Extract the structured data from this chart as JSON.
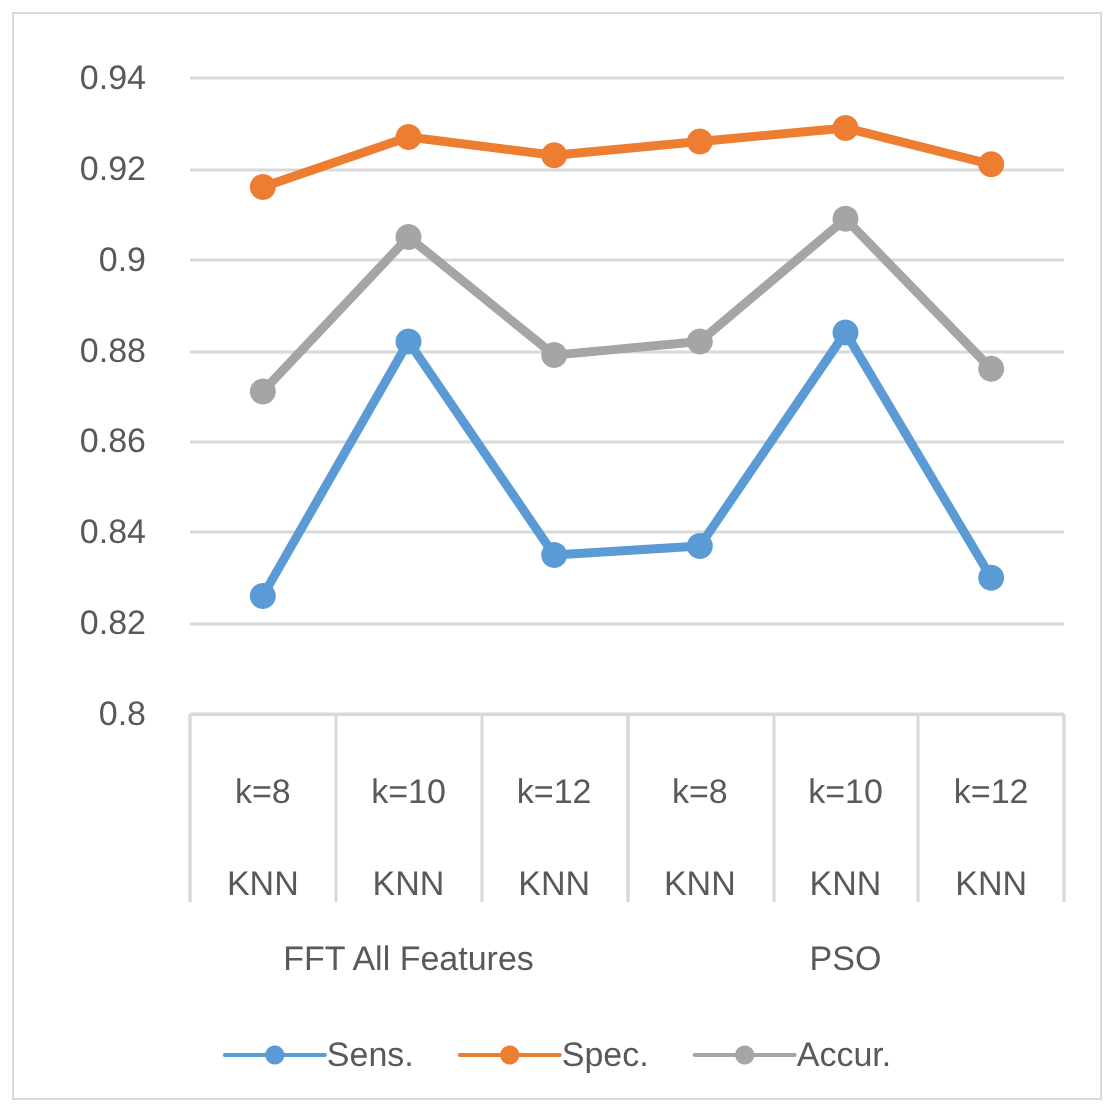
{
  "chart_data": {
    "type": "line",
    "categories": [
      "k=8\nKNN",
      "k=10\nKNN",
      "k=12\nKNN",
      "k=8\nKNN",
      "k=10\nKNN",
      "k=12\nKNN"
    ],
    "annotations": [
      "FFT All Features",
      "PSO"
    ],
    "series": [
      {
        "name": "Sens.",
        "color": "#5b9bd5",
        "values": [
          0.826,
          0.882,
          0.835,
          0.837,
          0.884,
          0.83
        ]
      },
      {
        "name": "Spec.",
        "color": "#ed7d31",
        "values": [
          0.916,
          0.927,
          0.923,
          0.926,
          0.929,
          0.921
        ]
      },
      {
        "name": "Accur.",
        "color": "#a5a5a5",
        "values": [
          0.871,
          0.905,
          0.879,
          0.882,
          0.909,
          0.876
        ]
      }
    ],
    "ylim": [
      0.8,
      0.94
    ],
    "yticks": [
      0.8,
      0.82,
      0.84,
      0.86,
      0.88,
      0.9,
      0.92,
      0.94
    ],
    "grid": "y",
    "legend": "bottom",
    "marker": "circle",
    "line_style": "solid"
  }
}
